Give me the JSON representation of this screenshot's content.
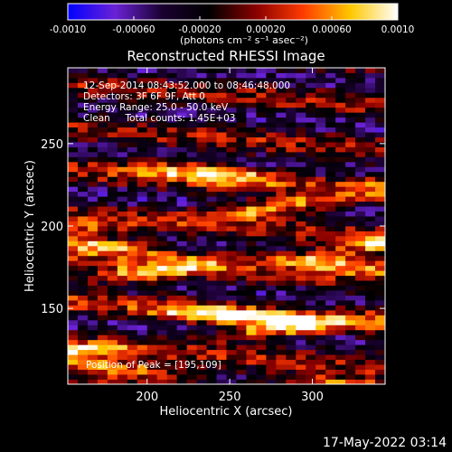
{
  "colorbar": {
    "tick_labels": [
      "-0.0010",
      "-0.00060",
      "-0.00020",
      "0.00020",
      "0.00060",
      "0.0010"
    ],
    "tick_values": [
      -0.001,
      -0.0006,
      -0.0002,
      0.0002,
      0.0006,
      0.001
    ],
    "range": [
      -0.001,
      0.001
    ],
    "unit_label": "(photons cm⁻² s⁻¹ asec⁻²)",
    "colormap": [
      "#0000ff",
      "#6a22d6",
      "#1a0030",
      "#000000",
      "#8a0000",
      "#ff3c00",
      "#ffc800",
      "#ffffff"
    ]
  },
  "chart_data": {
    "type": "heatmap",
    "title": "Reconstructed RHESSI Image",
    "xlabel": "Heliocentric X (arcsec)",
    "ylabel": "Heliocentric Y (arcsec)",
    "x_ticks": [
      200,
      250,
      300
    ],
    "y_ticks": [
      150,
      200,
      250
    ],
    "xlim": [
      152,
      344
    ],
    "ylim": [
      104,
      296
    ],
    "grid": false,
    "annotations": [
      "12-Sep-2014 08:43:52.000 to 08:46:48.000",
      "Detectors: 3F 6F 9F, Att 0",
      "Energy Range: 25.0 - 50.0 keV",
      "Clean     Total counts: 1.45E+03"
    ],
    "peak_label": "Position of Peak = [195,109]",
    "peak_position": [
      195,
      109
    ],
    "bright_bands_y": [
      109,
      133,
      147,
      177,
      183,
      207,
      232
    ],
    "band_orientation": "horizontal, slightly inclined"
  },
  "footer": {
    "date": "17-May-2022 03:14"
  }
}
